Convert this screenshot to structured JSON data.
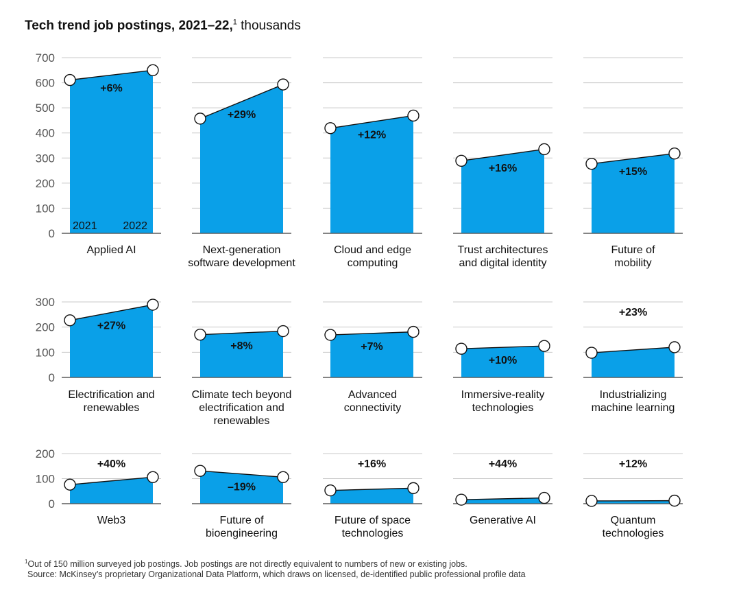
{
  "title": {
    "bold": "Tech trend job postings, 2021–22,",
    "sup": "1",
    "rest": " thousands"
  },
  "footnote": {
    "sup": "1",
    "text": "Out of 150 million surveyed job postings. Job postings are not directly equivalent to numbers of new or existing jobs."
  },
  "source": "Source: McKinsey’s proprietary Organizational Data Platform, which draws on licensed, de-identified public professional profile data",
  "colors": {
    "area": "#0aa0e8",
    "grid": "#c8c8c8",
    "axis": "#555555"
  },
  "chart_data": {
    "type": "area",
    "x": [
      "2021",
      "2022"
    ],
    "ylabel": "thousands",
    "rows": [
      {
        "ylim": [
          0,
          700
        ],
        "yticks": [
          0,
          100,
          200,
          300,
          400,
          500,
          600,
          700
        ]
      },
      {
        "ylim": [
          0,
          300
        ],
        "yticks": [
          0,
          100,
          200,
          300
        ]
      },
      {
        "ylim": [
          0,
          200
        ],
        "yticks": [
          0,
          100,
          200
        ]
      }
    ],
    "panels": [
      {
        "row": 0,
        "col": 0,
        "label": [
          "Applied AI"
        ],
        "values": [
          611,
          650
        ],
        "change": "+6%",
        "show_years": true
      },
      {
        "row": 0,
        "col": 1,
        "label": [
          "Next-generation",
          "software development"
        ],
        "values": [
          457,
          593
        ],
        "change": "+29%"
      },
      {
        "row": 0,
        "col": 2,
        "label": [
          "Cloud and edge",
          "computing"
        ],
        "values": [
          419,
          469
        ],
        "change": "+12%"
      },
      {
        "row": 0,
        "col": 3,
        "label": [
          "Trust architectures",
          "and digital identity"
        ],
        "values": [
          289,
          335
        ],
        "change": "+16%"
      },
      {
        "row": 0,
        "col": 4,
        "label": [
          "Future of",
          "mobility"
        ],
        "values": [
          277,
          318
        ],
        "change": "+15%"
      },
      {
        "row": 1,
        "col": 0,
        "label": [
          "Electrification and",
          "renewables"
        ],
        "values": [
          227,
          289
        ],
        "change": "+27%"
      },
      {
        "row": 1,
        "col": 1,
        "label": [
          "Climate tech beyond",
          "electrification and",
          "renewables"
        ],
        "values": [
          170,
          184
        ],
        "change": "+8%"
      },
      {
        "row": 1,
        "col": 2,
        "label": [
          "Advanced",
          "connectivity"
        ],
        "values": [
          169,
          181
        ],
        "change": "+7%"
      },
      {
        "row": 1,
        "col": 3,
        "label": [
          "Immersive-reality",
          "technologies"
        ],
        "values": [
          114,
          125
        ],
        "change": "+10%"
      },
      {
        "row": 1,
        "col": 4,
        "label": [
          "Industrializing",
          "machine learning"
        ],
        "values": [
          98,
          120
        ],
        "change": "+23%"
      },
      {
        "row": 2,
        "col": 0,
        "label": [
          "Web3"
        ],
        "values": [
          76,
          106
        ],
        "change": "+40%"
      },
      {
        "row": 2,
        "col": 1,
        "label": [
          "Future of",
          "bioengineering"
        ],
        "values": [
          131,
          106
        ],
        "change": "–19%"
      },
      {
        "row": 2,
        "col": 2,
        "label": [
          "Future of space",
          "technologies"
        ],
        "values": [
          53,
          62
        ],
        "change": "+16%"
      },
      {
        "row": 2,
        "col": 3,
        "label": [
          "Generative AI"
        ],
        "values": [
          16,
          23
        ],
        "change": "+44%"
      },
      {
        "row": 2,
        "col": 4,
        "label": [
          "Quantum",
          "technologies"
        ],
        "values": [
          11,
          12
        ],
        "change": "+12%"
      }
    ]
  }
}
